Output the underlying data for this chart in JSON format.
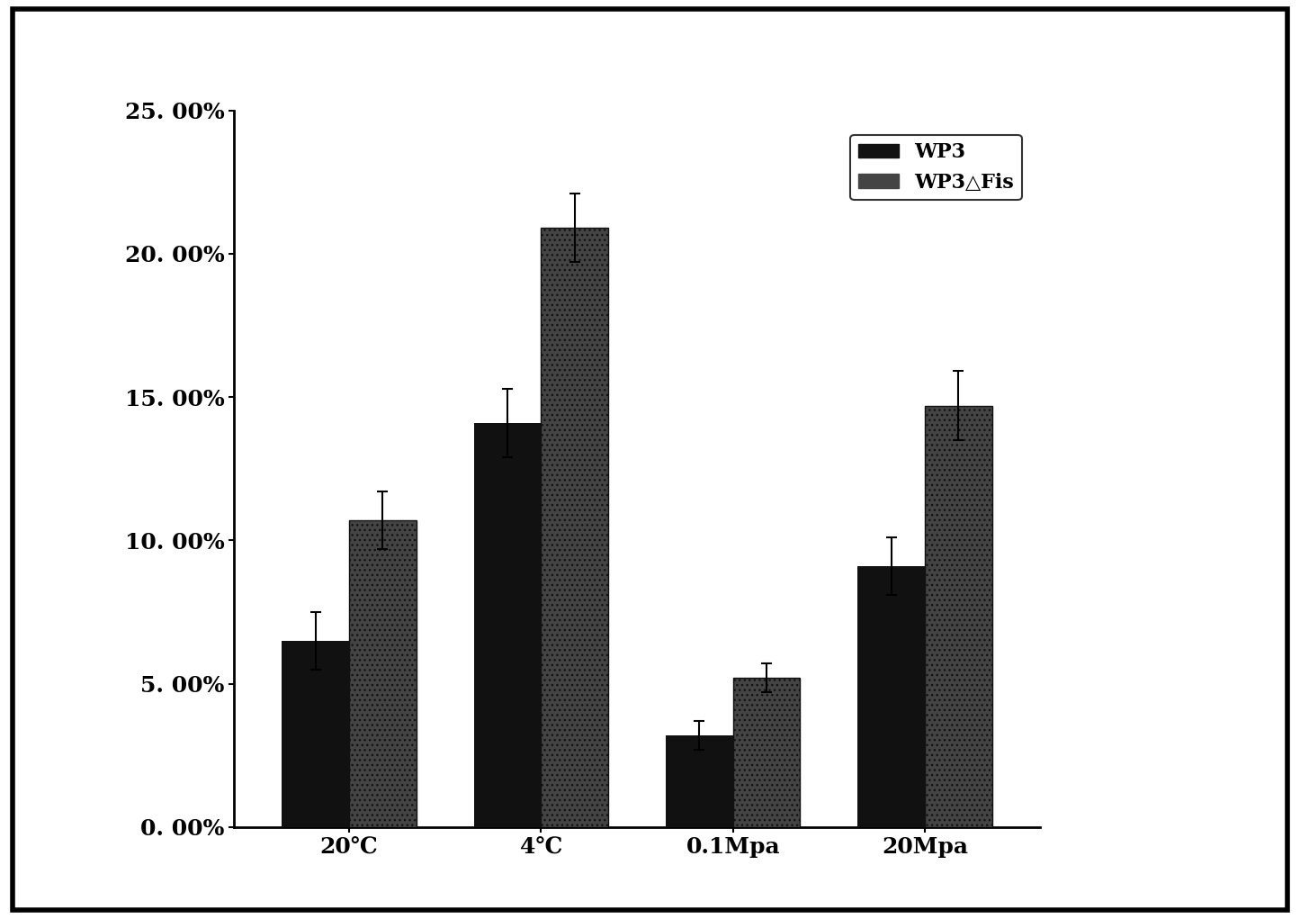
{
  "categories": [
    "20℃",
    "4℃",
    "0.1Mpa",
    "20Mpa"
  ],
  "wp3_values": [
    0.065,
    0.141,
    0.032,
    0.091
  ],
  "wp3_errors": [
    0.01,
    0.012,
    0.005,
    0.01
  ],
  "wp3fis_values": [
    0.107,
    0.209,
    0.052,
    0.147
  ],
  "wp3fis_errors": [
    0.01,
    0.012,
    0.005,
    0.012
  ],
  "wp3_color": "#111111",
  "wp3fis_color": "#444444",
  "ylim": [
    0,
    0.25
  ],
  "yticks": [
    0.0,
    0.05,
    0.1,
    0.15,
    0.2,
    0.25
  ],
  "ytick_labels": [
    "0. 00%",
    "5. 00%",
    "10. 00%",
    "15. 00%",
    "20. 00%",
    "25. 00%"
  ],
  "legend_labels": [
    "WP3",
    "WP3△Fis"
  ],
  "bar_width": 0.35,
  "plot_bg": "#ffffff",
  "fig_bg": "#ffffff",
  "outer_border_color": "#000000",
  "title": "",
  "xlabel": "",
  "ylabel": ""
}
